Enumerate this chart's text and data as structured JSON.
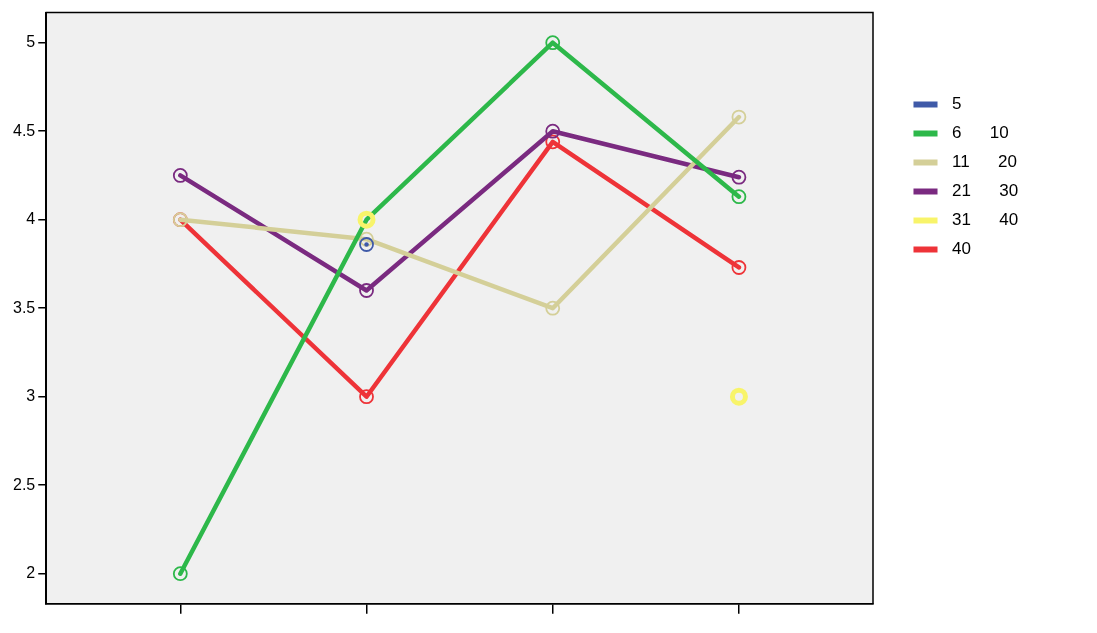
{
  "chart_data": {
    "type": "line",
    "categories": [
      null,
      null,
      null,
      null
    ],
    "series": [
      {
        "name": "5",
        "color": "#3f5aa8",
        "values": [
          null,
          3.86,
          null,
          null
        ]
      },
      {
        "name": "6      10",
        "color": "#2db84a",
        "values": [
          2,
          4,
          5,
          4.13
        ]
      },
      {
        "name": "11      20",
        "color": "#d4cf98",
        "values": [
          4,
          3.89,
          3.5,
          4.58
        ]
      },
      {
        "name": "21      30",
        "color": "#7a2a80",
        "values": [
          4.25,
          3.6,
          4.5,
          4.24
        ]
      },
      {
        "name": "31      40",
        "color": "#f8f46a",
        "type": "scatter",
        "values": [
          null,
          4,
          null,
          3
        ]
      },
      {
        "name": "40",
        "color": "#ee3338",
        "values": [
          4,
          3,
          4.44,
          3.73
        ]
      }
    ],
    "ylim": [
      1.83,
      5.17
    ],
    "yticks": [
      2,
      2.5,
      3,
      3.5,
      4,
      4.5,
      5
    ],
    "grid": false,
    "legend": "right",
    "marker": "circle",
    "line_style": "solid",
    "tick_labels": "y"
  }
}
